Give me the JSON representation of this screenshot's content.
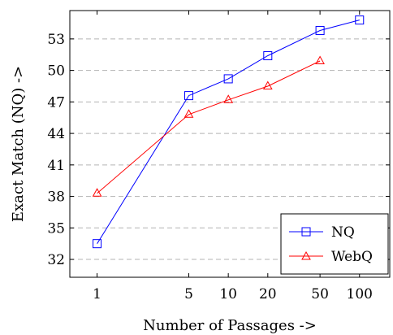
{
  "chart_data": {
    "type": "line",
    "xscale": "log",
    "x": [
      1,
      5,
      10,
      20,
      50,
      100
    ],
    "xticks": [
      "1",
      "5",
      "10",
      "20",
      "50",
      "100"
    ],
    "xlim": [
      0.62,
      170
    ],
    "ylim": [
      30.3,
      55.7
    ],
    "yticks": [
      32,
      35,
      38,
      41,
      44,
      47,
      50,
      53
    ],
    "xlabel": "Number of Passages ->",
    "ylabel": "Exact Match (NQ) ->",
    "grid": "horizontal-dashed",
    "legend_position": "bottom-right",
    "series": [
      {
        "name": "NQ",
        "color": "#0000ff",
        "marker": "square",
        "values": [
          33.5,
          47.6,
          49.2,
          51.4,
          53.8,
          54.8
        ]
      },
      {
        "name": "WebQ",
        "color": "#ff0000",
        "marker": "triangle",
        "values": [
          38.3,
          45.8,
          47.2,
          48.5,
          50.9,
          null
        ]
      }
    ]
  }
}
